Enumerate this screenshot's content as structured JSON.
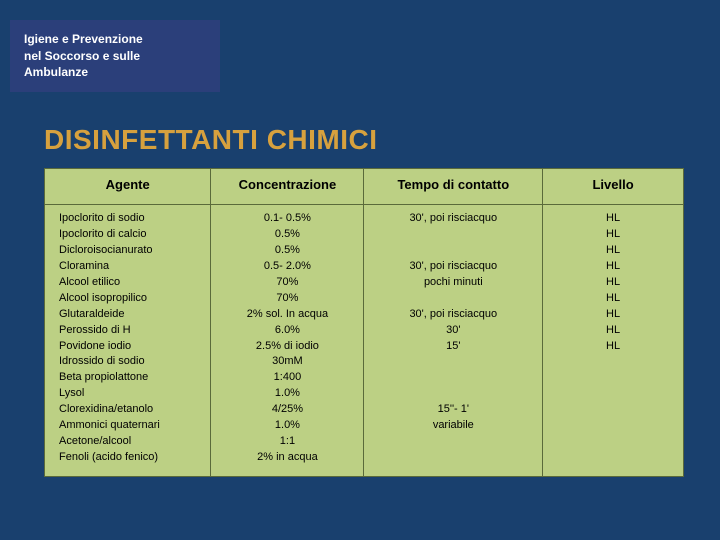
{
  "header": {
    "line1": "Igiene e Prevenzione",
    "line2": "nel Soccorso e sulle",
    "line3": "Ambulanze"
  },
  "title": "DISINFETTANTI CHIMICI",
  "table": {
    "columns": [
      "Agente",
      "Concentrazione",
      "Tempo di contatto",
      "Livello"
    ],
    "col_widths_pct": [
      26,
      24,
      28,
      22
    ],
    "header_bg": "#bcd084",
    "cell_bg": "#bcd084",
    "border_color": "#5a6a3a",
    "header_fontsize_pt": 13,
    "cell_fontsize_pt": 11,
    "agente": [
      "Ipoclorito di sodio",
      "Ipoclorito di calcio",
      "Dicloroisocianurato",
      "Cloramina",
      "Alcool etilico",
      "Alcool isopropilico",
      "Glutaraldeide",
      "Perossido di H",
      "Povidone iodio",
      "Idrossido di sodio",
      "Beta propiolattone",
      "Lysol",
      "Clorexidina/etanolo",
      "Ammonici quaternari",
      "Acetone/alcool",
      "Fenoli (acido fenico)"
    ],
    "concentrazione": [
      "0.1- 0.5%",
      "0.5%",
      "0.5%",
      "0.5- 2.0%",
      "70%",
      "70%",
      "2% sol. In acqua",
      "6.0%",
      "2.5% di iodio",
      "30mM",
      "1:400",
      "1.0%",
      "4/25%",
      "1.0%",
      "1:1",
      "2% in acqua"
    ],
    "tempo": [
      "30', poi risciacquo",
      "",
      "",
      "30', poi risciacquo",
      "pochi minuti",
      "",
      "30', poi risciacquo",
      "30'",
      "15'",
      "",
      "",
      "",
      "15''- 1'",
      "variabile",
      "",
      ""
    ],
    "livello": [
      "HL",
      "HL",
      "HL",
      "HL",
      "HL",
      "HL",
      "HL",
      "HL",
      "HL",
      "",
      "",
      "",
      "",
      "",
      "",
      ""
    ]
  },
  "colors": {
    "slide_bg": "#19406e",
    "header_box_bg": "#2b3f7a",
    "title_color": "#d7a13e"
  }
}
